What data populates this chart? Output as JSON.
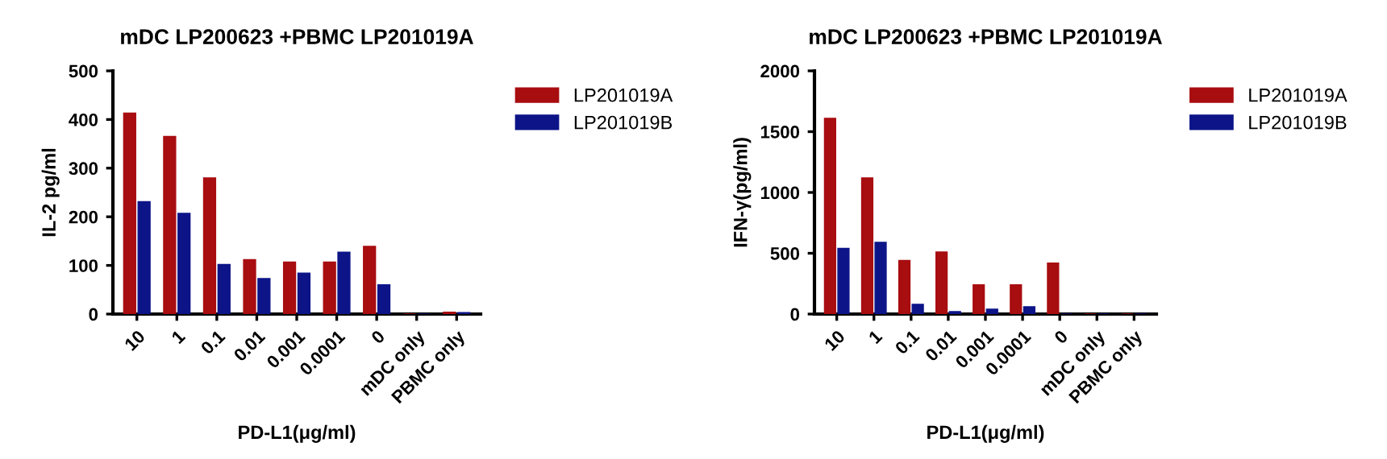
{
  "chart_data": [
    {
      "type": "bar",
      "title": "mDC LP200623 +PBMC LP201019A",
      "xlabel": "PD-L1(μg/ml)",
      "ylabel": "IL-2 pg/ml",
      "categories": [
        "10",
        "1",
        "0.1",
        "0.01",
        "0.001",
        "0.0001",
        "0",
        "mDC only",
        "PBMC only"
      ],
      "series": [
        {
          "name": "LP201019A",
          "color": "#a80d10",
          "values": [
            413,
            365,
            280,
            112,
            107,
            107,
            139,
            0,
            4
          ]
        },
        {
          "name": "LP201019B",
          "color": "#0c1488",
          "values": [
            231,
            207,
            102,
            73,
            84,
            127,
            60,
            0,
            3
          ]
        }
      ],
      "ylim": [
        0,
        500
      ],
      "yticks": [
        0,
        100,
        200,
        300,
        400,
        500
      ],
      "grid": false,
      "legend": "top right"
    },
    {
      "type": "bar",
      "title": "mDC LP200623 +PBMC LP201019A",
      "xlabel": "PD-L1(μg/ml)",
      "ylabel": "IFN-γ(pg/ml)",
      "categories": [
        "10",
        "1",
        "0.1",
        "0.01",
        "0.001",
        "0.0001",
        "0",
        "mDC only",
        "PBMC only"
      ],
      "series": [
        {
          "name": "LP201019A",
          "color": "#a80d10",
          "values": [
            1610,
            1120,
            440,
            510,
            240,
            240,
            420,
            0,
            0
          ]
        },
        {
          "name": "LP201019B",
          "color": "#0c1488",
          "values": [
            540,
            590,
            80,
            20,
            40,
            60,
            0,
            0,
            0
          ]
        }
      ],
      "ylim": [
        0,
        2000
      ],
      "yticks": [
        0,
        500,
        1000,
        1500,
        2000
      ],
      "grid": false,
      "legend": "top right"
    }
  ]
}
